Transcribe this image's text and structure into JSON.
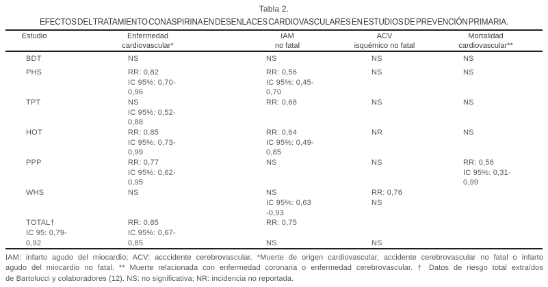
{
  "title": "Tabla 2.",
  "subtitle": "EFECTOS DEL TRATAMIENTO CON ASPIRINA EN DESENLACES CARDIOVASCULARES EN ESTUDIOS DE PREVENCIÓN PRIMARIA.",
  "table": {
    "headers": [
      [
        "Estudio"
      ],
      [
        "Enfermedad",
        "cardiovascular*"
      ],
      [
        "IAM",
        "no fatal"
      ],
      [
        "ACV",
        "isquémico no fatal"
      ],
      [
        "Mortalidad",
        "cardiovascular**"
      ]
    ],
    "rows": [
      {
        "cells": [
          [
            "BDT"
          ],
          [
            "NS"
          ],
          [
            "NS"
          ],
          [
            "NS"
          ],
          [
            "NS"
          ]
        ]
      },
      {
        "cells": [
          [
            "PHS"
          ],
          [
            "RR: 0,82",
            "IC 95%: 0,70-",
            "0,96"
          ],
          [
            "RR: 0,56",
            "IC 95%: 0,45-",
            "0,70"
          ],
          [
            "NS"
          ],
          [
            "NS"
          ]
        ]
      },
      {
        "cells": [
          [
            "TPT"
          ],
          [
            "NS",
            "IC 95%: 0,52-",
            "0,88"
          ],
          [
            "RR: 0,68"
          ],
          [
            "NS"
          ],
          [
            "NS"
          ]
        ]
      },
      {
        "cells": [
          [
            "HOT"
          ],
          [
            "RR: 0,85",
            "IC 95%: 0,73-",
            "0,99"
          ],
          [
            "RR: 0,64",
            "IC 95%: 0,49-",
            "0,85"
          ],
          [
            "NR"
          ],
          [
            "NS"
          ]
        ]
      },
      {
        "cells": [
          [
            "PPP"
          ],
          [
            "RR: 0,77",
            "IC 95%: 0,62-",
            "0,95"
          ],
          [
            "NS"
          ],
          [
            "NS"
          ],
          [
            "RR: 0,56",
            "IC 95%: 0,31-",
            "0,99"
          ]
        ]
      },
      {
        "cells": [
          [
            "WHS"
          ],
          [
            "NS"
          ],
          [
            "NS",
            "IC 95%: 0,63",
            "-0,93"
          ],
          [
            "RR: 0,76",
            "NS"
          ],
          []
        ]
      },
      {
        "cells": [
          [
            "TOTAL†",
            "IC 95: 0,79-",
            "0,92"
          ],
          [
            "RR: 0,85",
            "IC 95%: 0,67-",
            "0,85"
          ],
          [
            "RR: 0,75",
            "",
            "NS"
          ],
          [
            "",
            "",
            "NS"
          ],
          []
        ]
      }
    ],
    "footnote_lines": [
      "IAM: infarto agudo del miocardio; ACV: acccidente cerebrovascular. *Muerte de origen cardiovascular, accidente cerebrovascular no fatal o infarto",
      "agudo del miocardio no fatal. ** Muerte relacionada con enfermedad coronaria o enfermedad cerebrovascular. † Datos de riesgo total extraídos",
      "de Bartolucci y colaboradores (12). NS: no significativa; NR: incidencia no reportada."
    ]
  },
  "colors": {
    "background": "#ffffff",
    "heading_text": "#3d3d3d",
    "body_text": "#565656",
    "rule": "#1f1f1f"
  }
}
